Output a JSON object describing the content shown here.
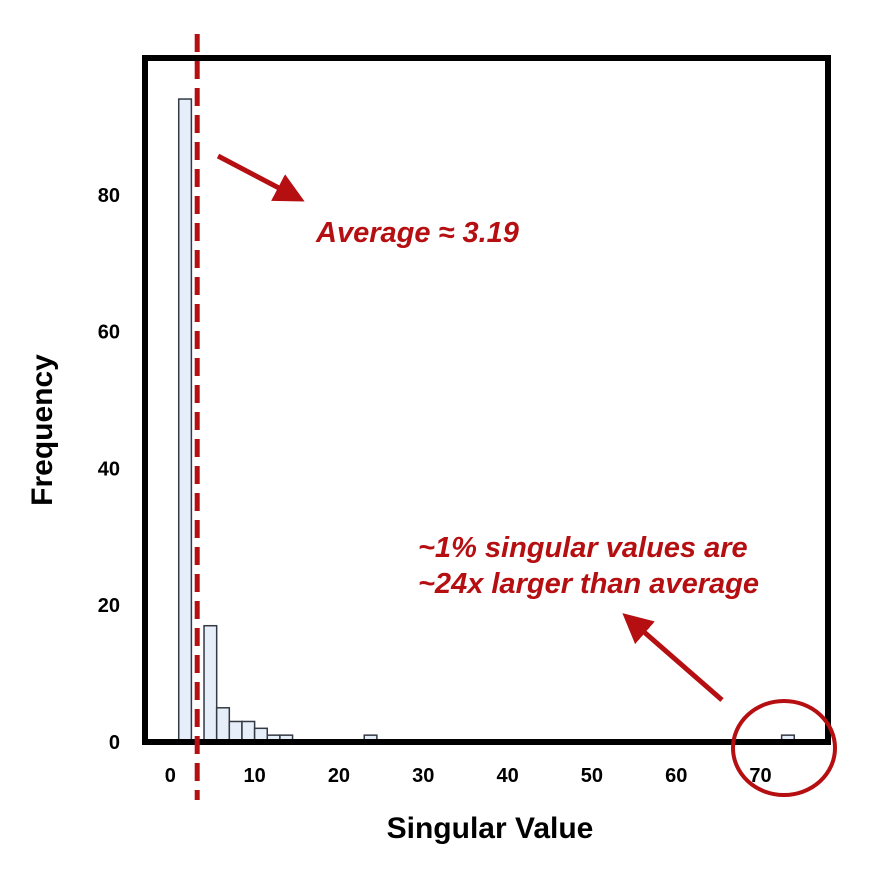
{
  "chart_data": {
    "type": "bar",
    "title": "",
    "xlabel": "Singular Value",
    "ylabel": "Frequency",
    "xlim": [
      -3,
      78
    ],
    "ylim": [
      0,
      100
    ],
    "xticks": [
      0,
      10,
      20,
      30,
      40,
      50,
      60,
      70
    ],
    "yticks": [
      0,
      20,
      40,
      60,
      80
    ],
    "bin_width": 1.5,
    "bins": [
      {
        "start": 1.0,
        "count": 94
      },
      {
        "start": 4.0,
        "count": 17
      },
      {
        "start": 5.5,
        "count": 5
      },
      {
        "start": 7.0,
        "count": 3
      },
      {
        "start": 8.5,
        "count": 3
      },
      {
        "start": 10.0,
        "count": 2
      },
      {
        "start": 11.5,
        "count": 1
      },
      {
        "start": 13.0,
        "count": 1
      },
      {
        "start": 23.0,
        "count": 1
      },
      {
        "start": 72.5,
        "count": 1
      }
    ],
    "average_line": 3.19,
    "annotations": {
      "average": "Average ≈ 3.19",
      "outlier_line1": "~1% singular values are",
      "outlier_line2": "~24x larger than average"
    },
    "colors": {
      "bar_fill": "#e6eefa",
      "bar_stroke": "#333a44",
      "accent": "#b50f12",
      "frame": "#000000"
    },
    "grid": false
  }
}
